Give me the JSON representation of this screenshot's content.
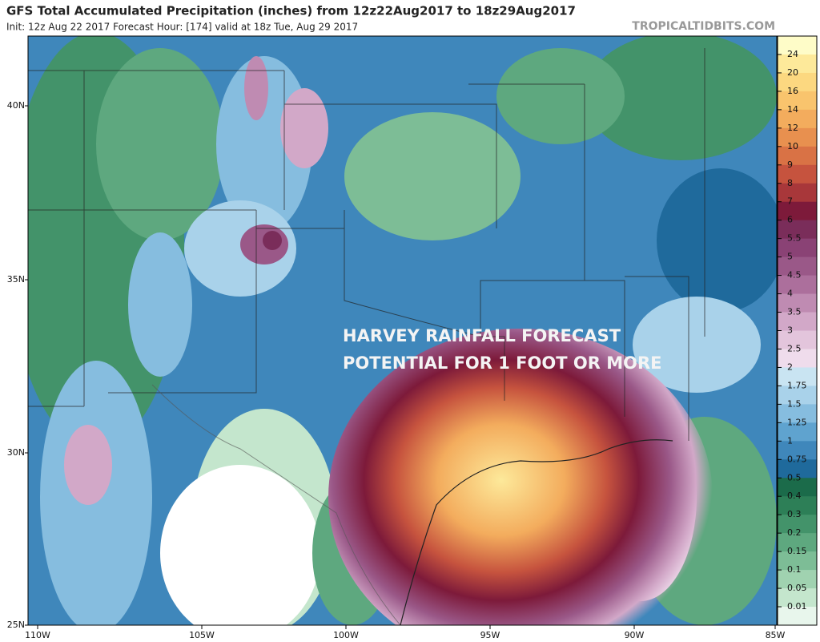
{
  "header": {
    "title": "GFS Total Accumulated Precipitation (inches) from 12z22Aug2017 to 18z29Aug2017",
    "subtitle": "Init: 12z Aug 22 2017   Forecast Hour: [174]   valid at 18z Tue, Aug 29 2017",
    "watermark": "TROPICALTIDBITS.COM"
  },
  "annotation": [
    "HARVEY RAINFALL FORECAST",
    "POTENTIAL FOR 1 FOOT OR MORE"
  ],
  "latitude_labels": [
    "40N",
    "35N",
    "30N",
    "25N"
  ],
  "longitude_labels": [
    "110W",
    "105W",
    "100W",
    "95W",
    "90W",
    "85W"
  ],
  "colorbar": {
    "labels": [
      "24",
      "20",
      "16",
      "14",
      "12",
      "10",
      "9",
      "8",
      "7",
      "6",
      "5.5",
      "5",
      "4.5",
      "4",
      "3.5",
      "3",
      "2.5",
      "2",
      "1.75",
      "1.5",
      "1.25",
      "1",
      "0.75",
      "0.5",
      "0.4",
      "0.3",
      "0.2",
      "0.15",
      "0.1",
      "0.05",
      "0.01"
    ],
    "colors": [
      "#fefcc8",
      "#fde99a",
      "#fcd880",
      "#f9c46d",
      "#f3ac5d",
      "#e8904f",
      "#d97245",
      "#c6533e",
      "#a8373a",
      "#7d1a3a",
      "#7a2d5a",
      "#8a4275",
      "#9a5888",
      "#ac6f9c",
      "#bf8bb2",
      "#d2a8c8",
      "#e3c5dc",
      "#efdcec",
      "#c9e4f2",
      "#a9d2ea",
      "#86bddf",
      "#5fa3cf",
      "#3f87bb",
      "#1f6a9c",
      "#1b6b4a",
      "#2d7f57",
      "#43936a",
      "#5ea87f",
      "#7dbd96",
      "#a0d2b0",
      "#c4e6cd",
      "#e8f6ec"
    ]
  }
}
